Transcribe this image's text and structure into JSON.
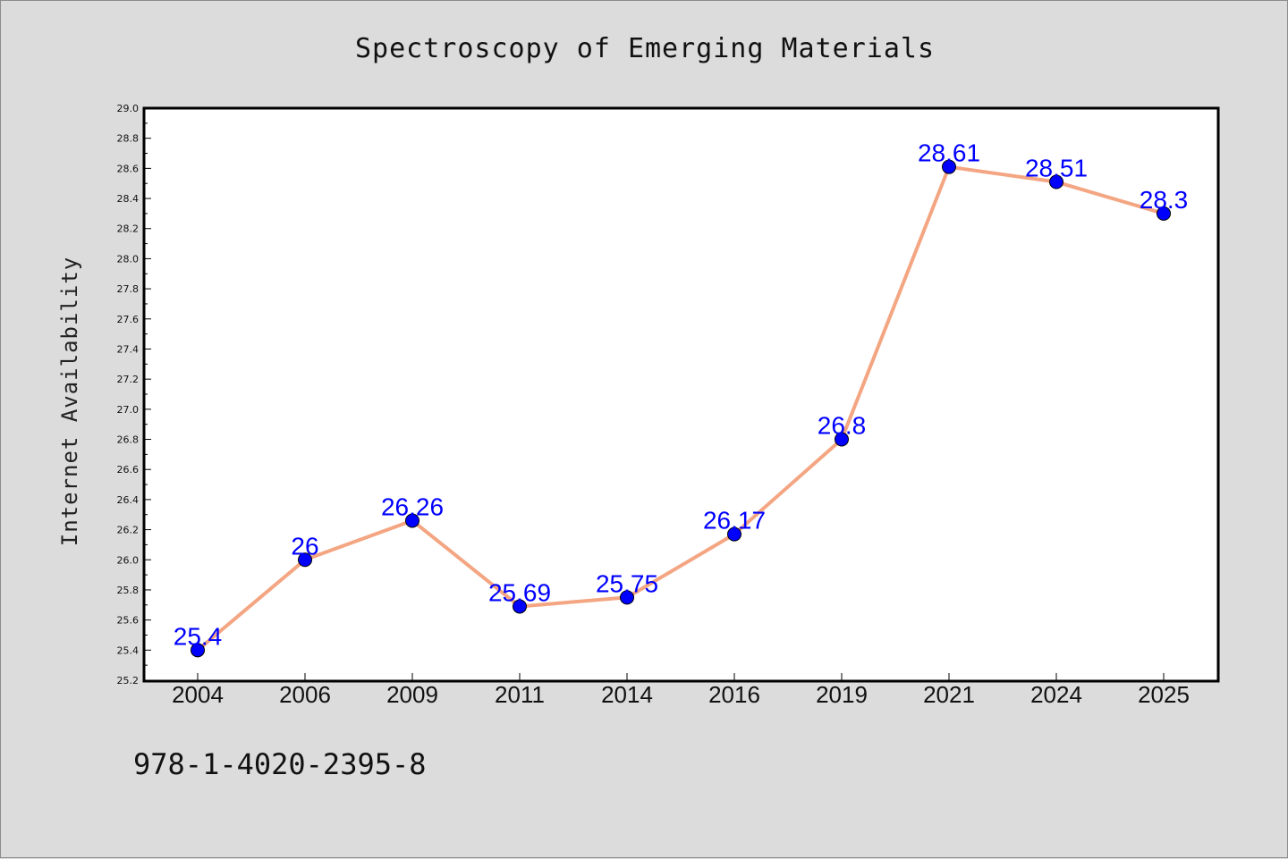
{
  "chart_data": {
    "type": "line",
    "title": "Spectroscopy of Emerging Materials",
    "xlabel": "",
    "ylabel": "Internet Availability",
    "categories": [
      "2004",
      "2006",
      "2009",
      "2011",
      "2014",
      "2016",
      "2019",
      "2021",
      "2024",
      "2025"
    ],
    "series": [
      {
        "values": [
          25.4,
          26,
          26.26,
          25.69,
          25.75,
          26.17,
          26.8,
          28.61,
          28.51,
          28.3
        ],
        "labels": [
          "25.4",
          "26",
          "26.26",
          "25.69",
          "25.75",
          "26.17",
          "26.8",
          "28.61",
          "28.51",
          "28.3"
        ],
        "line_color": "#f4a582",
        "marker_color": "#0000ff"
      }
    ],
    "ylim": [
      25.2,
      29.0
    ],
    "yticks": [
      "25.2",
      "25.4",
      "25.6",
      "25.8",
      "26.0",
      "26.2",
      "26.4",
      "26.6",
      "26.8",
      "27.0",
      "27.2",
      "27.4",
      "27.6",
      "27.8",
      "28.0",
      "28.2",
      "28.4",
      "28.6",
      "28.8",
      "29.0"
    ],
    "grid": false,
    "legend": "none"
  },
  "footer": {
    "isbn": "978-1-4020-2395-8"
  },
  "colors": {
    "background": "#dcdcdc",
    "plot_background": "#ffffff",
    "line": "#f4a582",
    "marker": "#0000ff",
    "data_label": "#0000ff"
  }
}
